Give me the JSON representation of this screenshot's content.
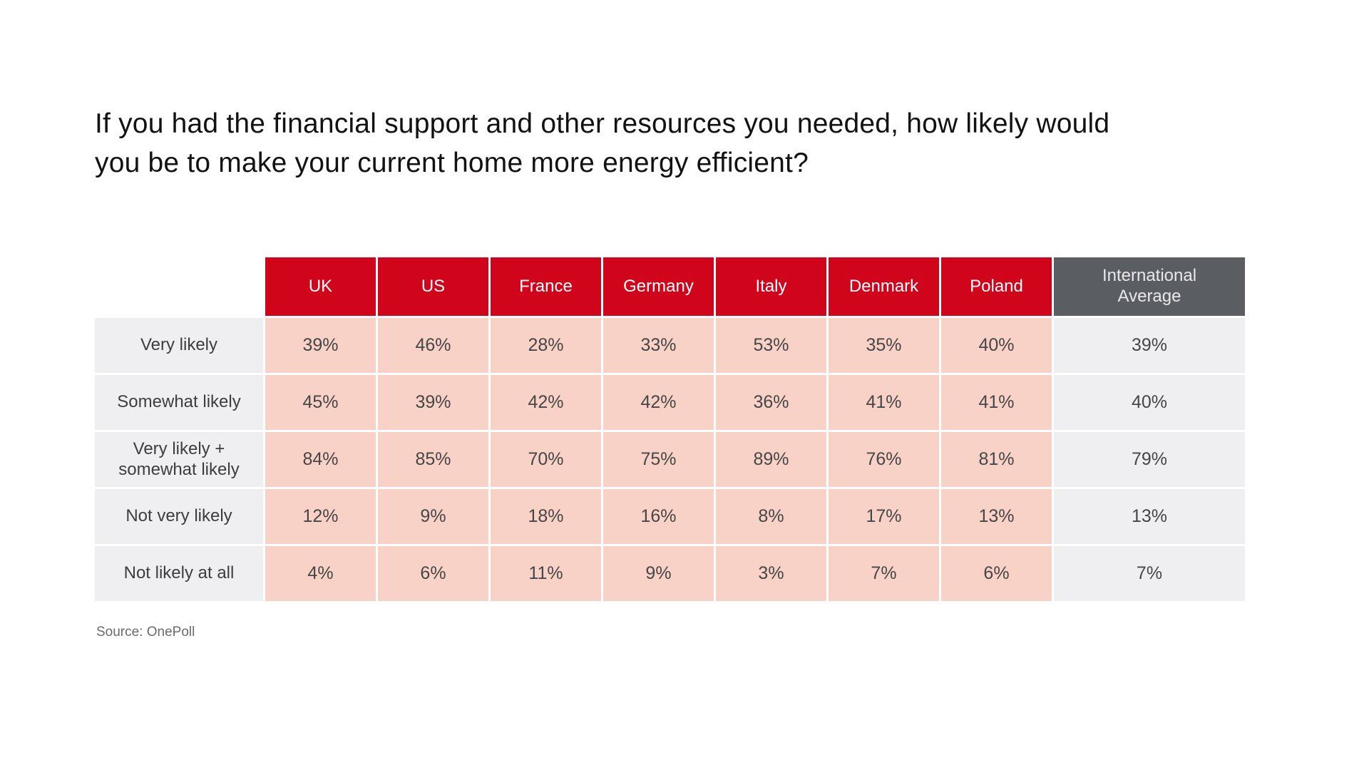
{
  "title": "If you had the financial support and other resources you needed, how likely would you be to make your current home more energy efficient?",
  "source": "Source: OnePoll",
  "colors": {
    "header_red": "#d0051c",
    "header_dark_gray": "#5a5d61",
    "cell_pink": "#f8d2c6",
    "cell_light_gray": "#efeff1"
  },
  "chart_data": {
    "type": "table",
    "title": "If you had the financial support and other resources you needed, how likely would you be to make your current home more energy efficient?",
    "columns": [
      "UK",
      "US",
      "France",
      "Germany",
      "Italy",
      "Denmark",
      "Poland",
      "International Average"
    ],
    "rows": [
      {
        "label": "Very likely",
        "values": [
          "39%",
          "46%",
          "28%",
          "33%",
          "53%",
          "35%",
          "40%",
          "39%"
        ]
      },
      {
        "label": "Somewhat likely",
        "values": [
          "45%",
          "39%",
          "42%",
          "42%",
          "36%",
          "41%",
          "41%",
          "40%"
        ]
      },
      {
        "label": "Very likely + somewhat likely",
        "values": [
          "84%",
          "85%",
          "70%",
          "75%",
          "89%",
          "76%",
          "81%",
          "79%"
        ]
      },
      {
        "label": "Not very likely",
        "values": [
          "12%",
          "9%",
          "18%",
          "16%",
          "8%",
          "17%",
          "13%",
          "13%"
        ]
      },
      {
        "label": "Not likely at all",
        "values": [
          "4%",
          "6%",
          "11%",
          "9%",
          "3%",
          "7%",
          "6%",
          "7%"
        ]
      }
    ],
    "legend": null,
    "source": "Source: OnePoll"
  }
}
